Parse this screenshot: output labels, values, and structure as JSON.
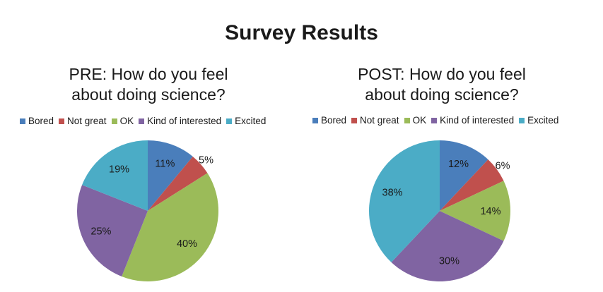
{
  "page_title": "Survey Results",
  "colors": {
    "Bored": "#4a7ebb",
    "Not great": "#c0504d",
    "OK": "#9bbb59",
    "Kind of interested": "#8064a2",
    "Excited": "#4bacc6"
  },
  "chart_data": [
    {
      "type": "pie",
      "title_line1": "PRE: How do you feel",
      "title_line2": "about doing science?",
      "legend_position": "top",
      "slices": [
        {
          "label": "Bored",
          "value": 11,
          "display": "11%"
        },
        {
          "label": "Not great",
          "value": 5,
          "display": "5%"
        },
        {
          "label": "OK",
          "value": 40,
          "display": "40%"
        },
        {
          "label": "Kind of interested",
          "value": 25,
          "display": "25%"
        },
        {
          "label": "Excited",
          "value": 19,
          "display": "19%"
        }
      ]
    },
    {
      "type": "pie",
      "title_line1": "POST: How do you feel",
      "title_line2": "about doing science?",
      "legend_position": "top",
      "slices": [
        {
          "label": "Bored",
          "value": 12,
          "display": "12%"
        },
        {
          "label": "Not great",
          "value": 6,
          "display": "6%"
        },
        {
          "label": "OK",
          "value": 14,
          "display": "14%"
        },
        {
          "label": "Kind of interested",
          "value": 30,
          "display": "30%"
        },
        {
          "label": "Excited",
          "value": 38,
          "display": "38%"
        }
      ]
    }
  ]
}
